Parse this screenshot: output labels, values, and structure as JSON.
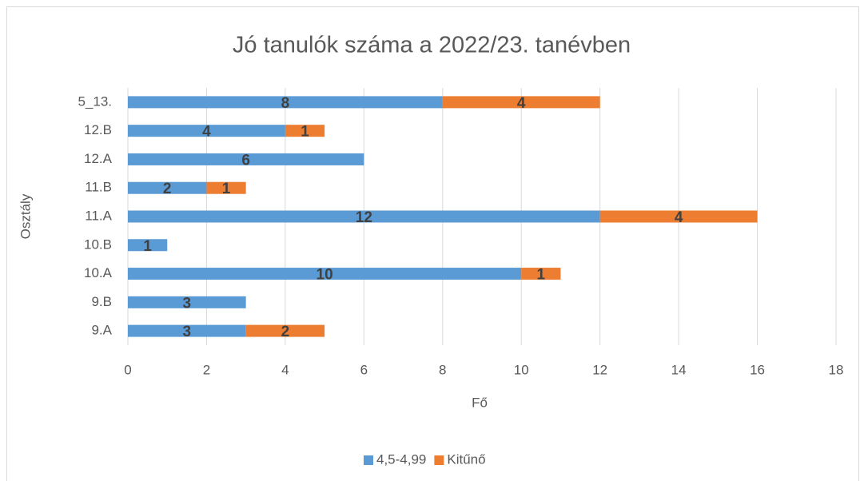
{
  "chart_data": {
    "type": "stacked_bar_horizontal",
    "title": "Jó tanulók száma a 2022/23. tanévben",
    "x_label": "Fő",
    "y_label": "Osztály",
    "categories": [
      "9.A",
      "9.B",
      "10.A",
      "10.B",
      "11.A",
      "11.B",
      "12.A",
      "12.B",
      "5_13."
    ],
    "series": [
      {
        "name": "4,5-4,99",
        "color": "#5b9bd5",
        "values": [
          3,
          3,
          10,
          1,
          12,
          2,
          6,
          4,
          8
        ]
      },
      {
        "name": "Kitűnő",
        "color": "#ed7d31",
        "values": [
          2,
          null,
          1,
          null,
          4,
          1,
          null,
          1,
          4
        ]
      }
    ],
    "xlim": [
      0,
      18
    ],
    "xticks": [
      0,
      2,
      4,
      6,
      8,
      10,
      12,
      14,
      16,
      18
    ],
    "grid": true,
    "legend": "bottom"
  }
}
